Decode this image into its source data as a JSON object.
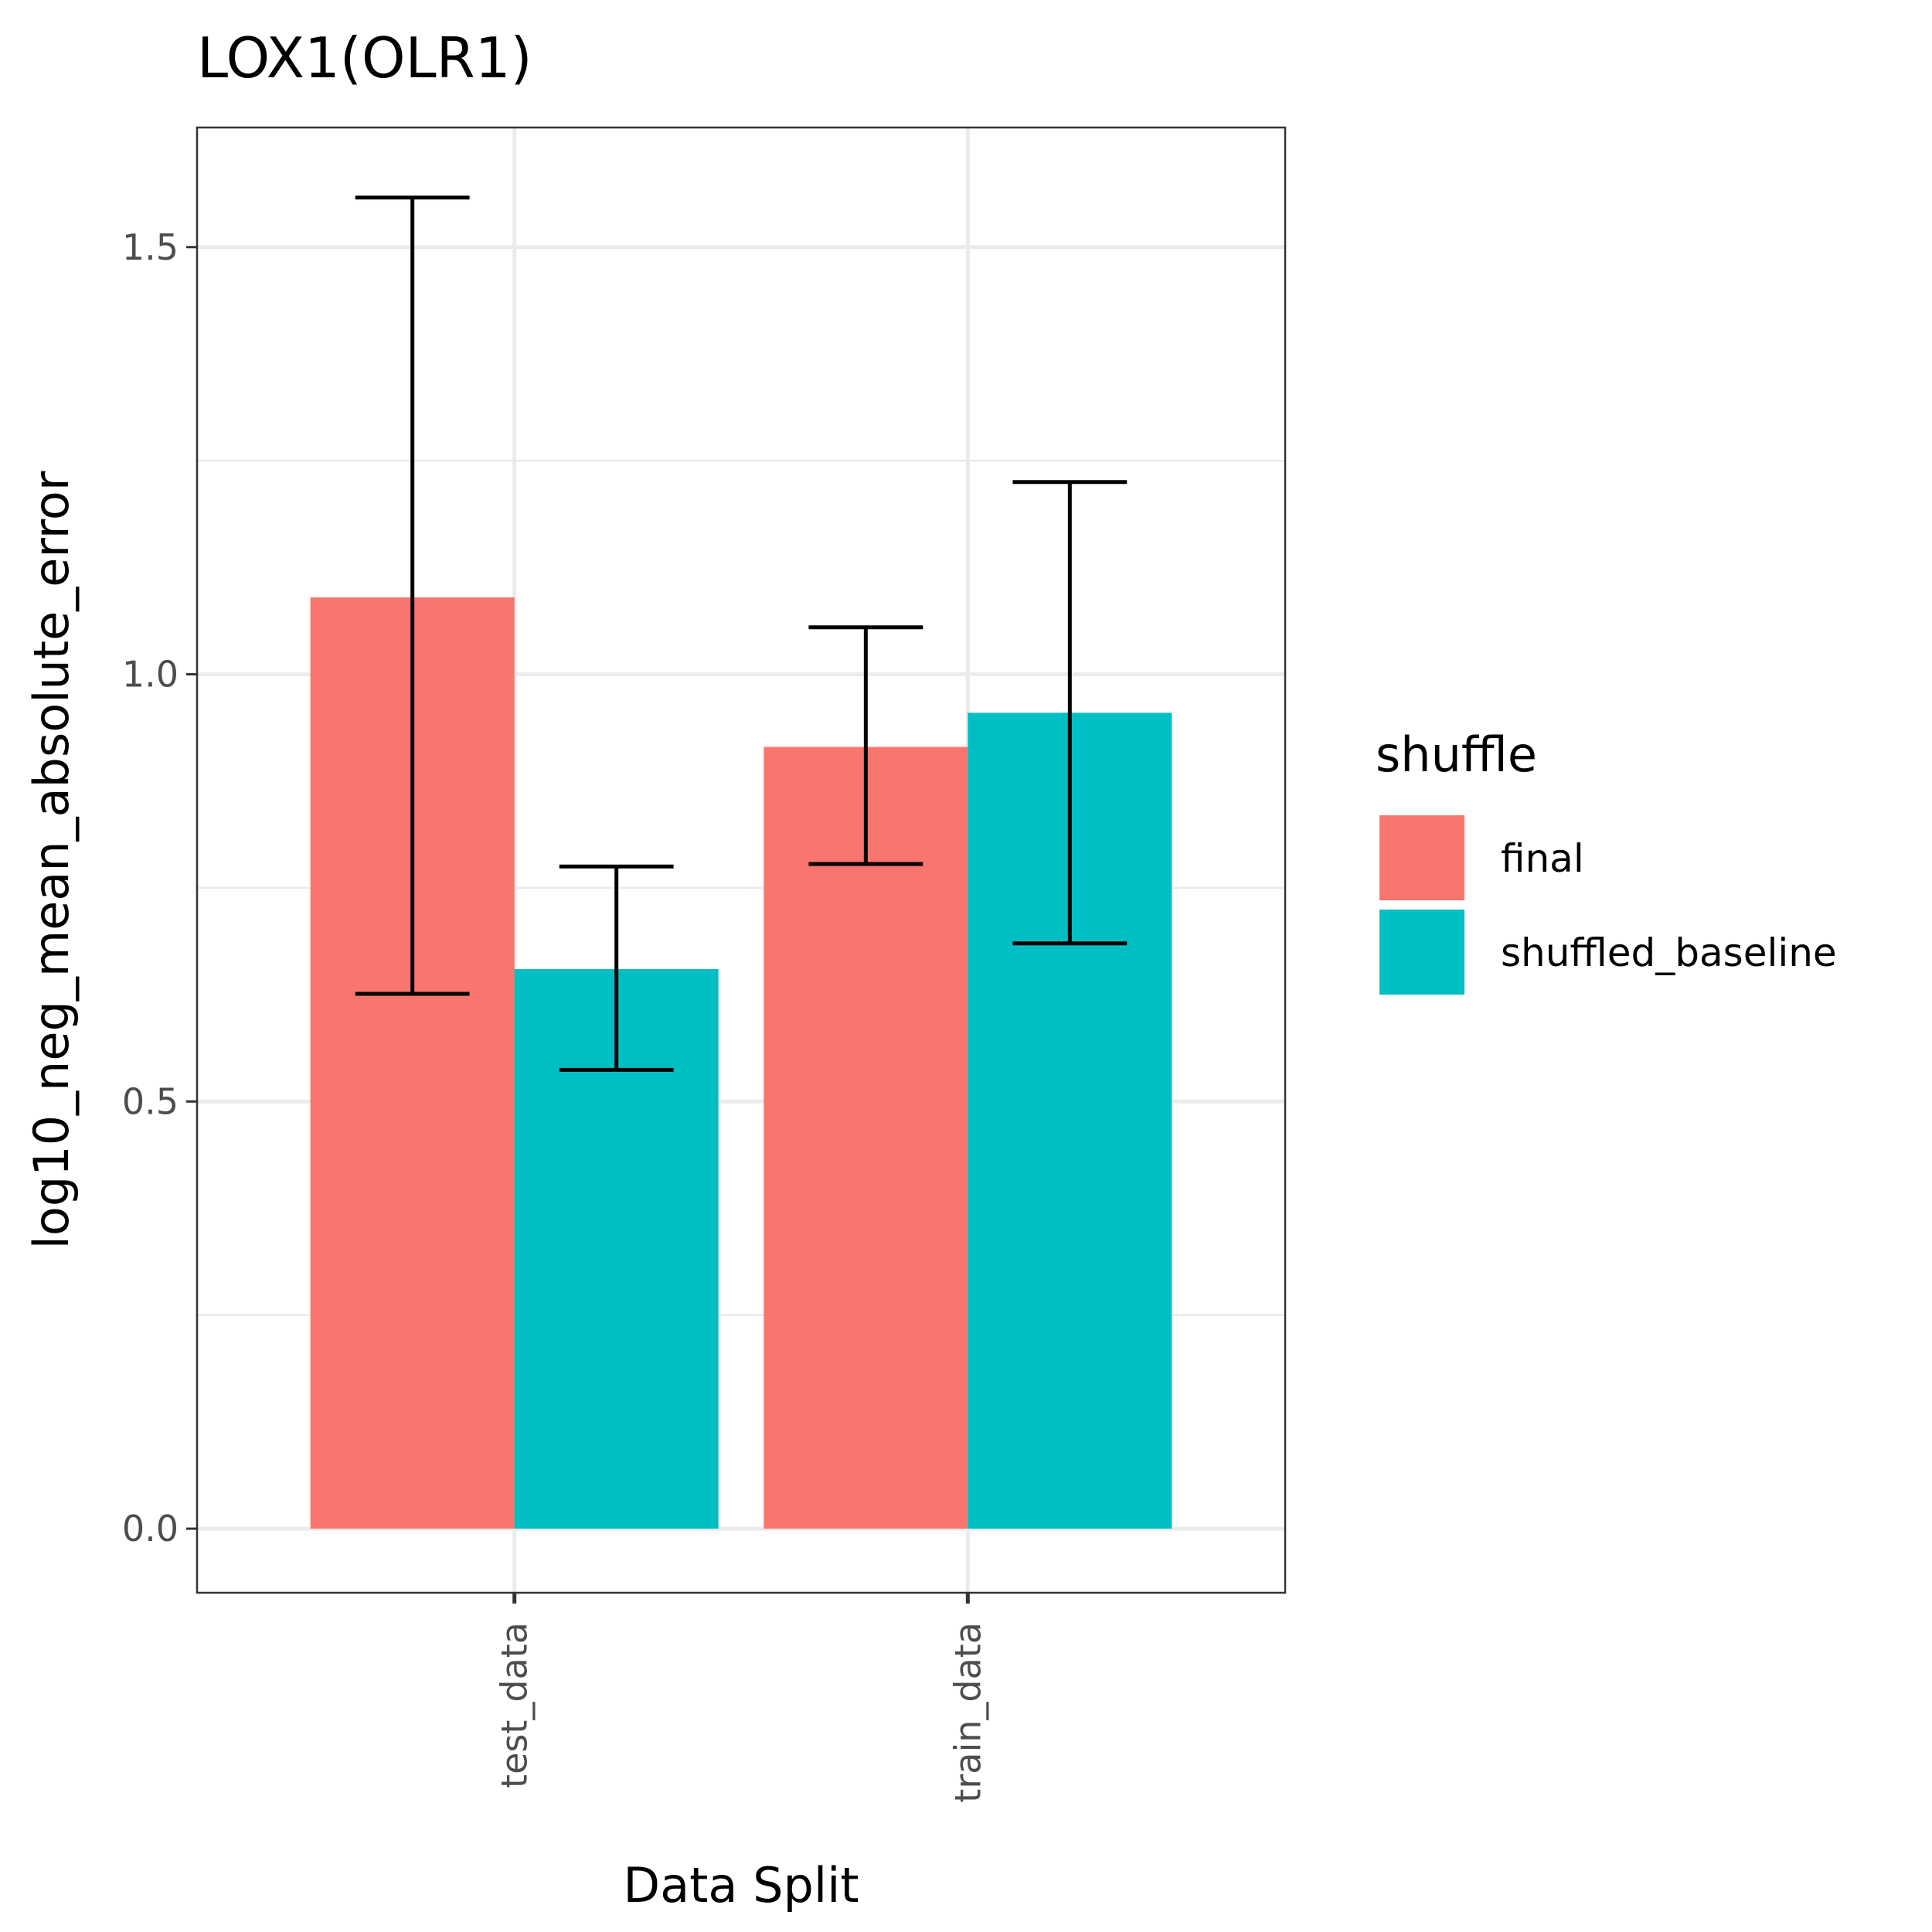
{
  "chart_data": {
    "type": "bar",
    "title": "LOX1(OLR1)",
    "xlabel": "Data Split",
    "ylabel": "log10_neg_mean_absolute_error",
    "categories": [
      "test_data",
      "train_data"
    ],
    "ylim": [
      -0.075,
      1.64
    ],
    "yticks": [
      0.0,
      0.5,
      1.0,
      1.5
    ],
    "ytick_labels": [
      "0.0",
      "0.5",
      "1.0",
      "1.5"
    ],
    "grid": true,
    "legend": {
      "title": "shuffle",
      "position": "right"
    },
    "series": [
      {
        "name": "final",
        "color": "#F8766D",
        "values": [
          1.09,
          0.915
        ],
        "err_low": [
          0.626,
          0.778
        ],
        "err_high": [
          1.558,
          1.055
        ]
      },
      {
        "name": "shuffled_baseline",
        "color": "#00BFC4",
        "values": [
          0.655,
          0.955
        ],
        "err_low": [
          0.537,
          0.685
        ],
        "err_high": [
          0.775,
          1.225
        ]
      }
    ]
  }
}
